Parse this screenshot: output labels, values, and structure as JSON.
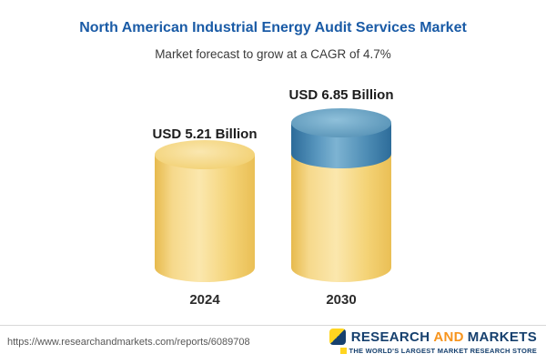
{
  "header": {
    "title": "North American Industrial Energy Audit Services Market",
    "subtitle": "Market forecast to grow at a CAGR of 4.7%"
  },
  "chart_data": {
    "type": "bar",
    "title": "North American Industrial Energy Audit Services Market",
    "subtitle": "Market forecast to grow at a CAGR of 4.7%",
    "categories": [
      "2024",
      "2030"
    ],
    "values": [
      5.21,
      6.85
    ],
    "value_labels": [
      "USD 5.21 Billion",
      "USD 6.85 Billion"
    ],
    "unit": "USD Billion",
    "cagr_percent": 4.7,
    "grid": false,
    "legend_position": "none",
    "colors": {
      "bar": "#f2cd68",
      "growth_segment": "#4284ad",
      "title": "#1a5ba6"
    }
  },
  "footer": {
    "url": "https://www.researchandmarkets.com/reports/6089708",
    "logo": {
      "word1": "RESEARCH",
      "word2": "AND",
      "word3": "MARKETS",
      "tagline": "THE WORLD'S LARGEST MARKET RESEARCH STORE"
    }
  }
}
